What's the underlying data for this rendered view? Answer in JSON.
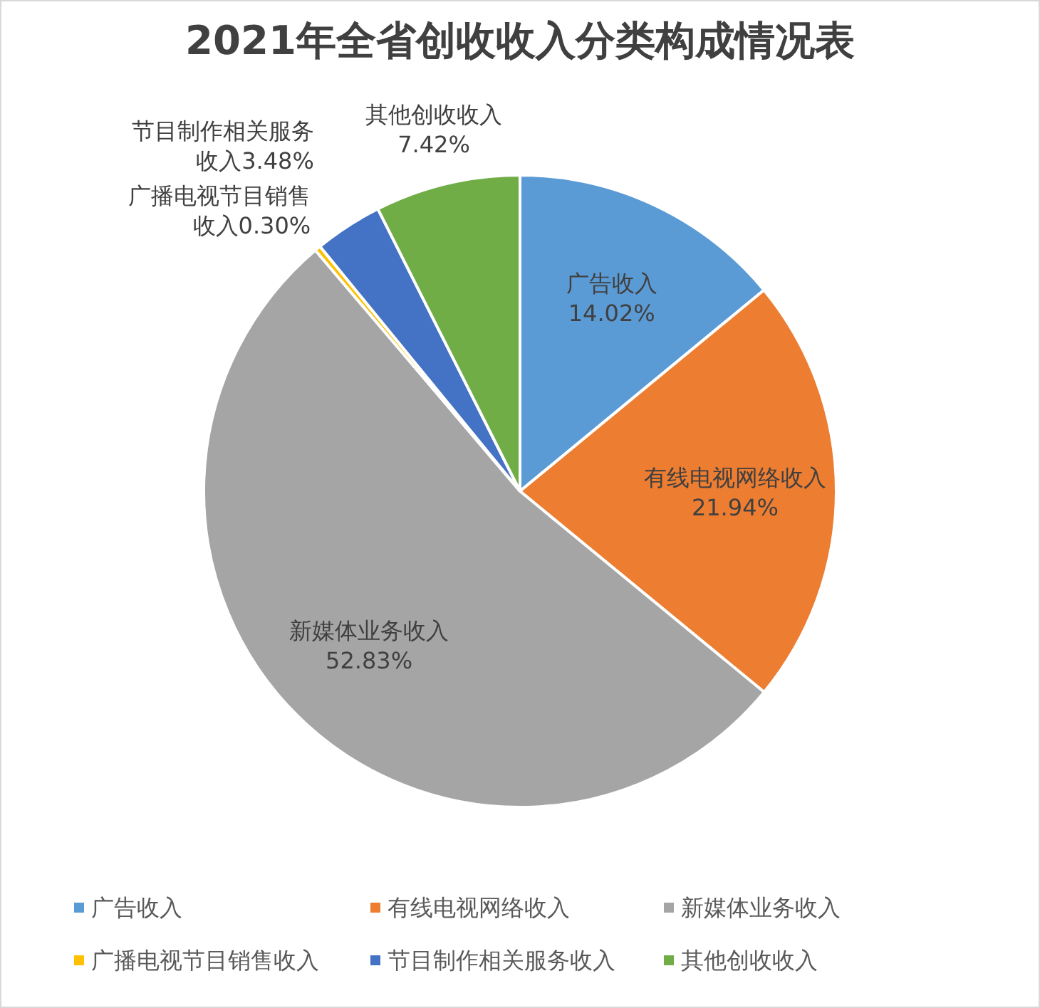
{
  "chart_data": {
    "type": "pie",
    "title": "2021年全省创收收入分类构成情况表",
    "categories": [
      "广告收入",
      "有线电视网络收入",
      "新媒体业务收入",
      "广播电视节目销售收入",
      "节目制作相关服务收入",
      "其他创收收入"
    ],
    "values": [
      14.02,
      21.94,
      52.83,
      0.3,
      3.48,
      7.42
    ],
    "colors": [
      "#5b9bd5",
      "#ed7d31",
      "#a5a5a5",
      "#ffc000",
      "#4472c4",
      "#70ad47"
    ],
    "value_labels": [
      "广告收入14.02%",
      "有线电视网络收入21.94%",
      "新媒体业务收入52.83%",
      "广播电视节目销售收入0.30%",
      "节目制作相关服务收入3.48%",
      "其他创收收入7.42%"
    ],
    "legend": "bottom"
  }
}
